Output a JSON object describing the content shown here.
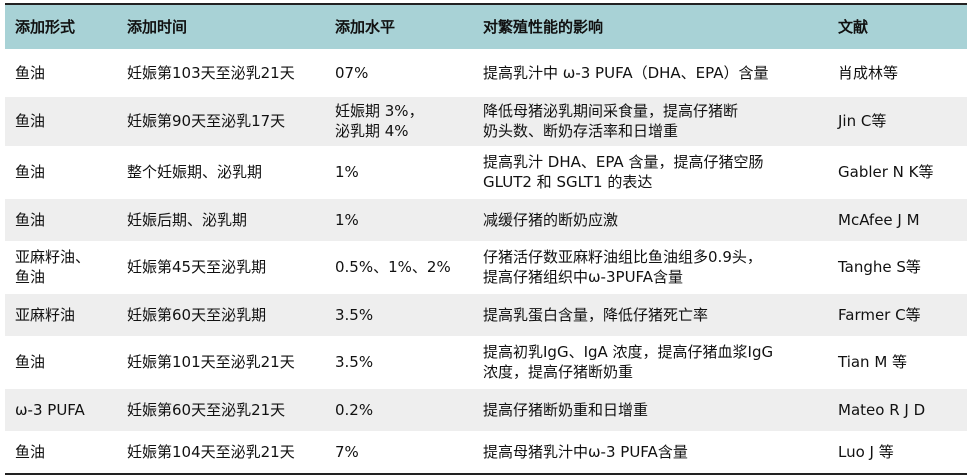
{
  "table": {
    "headers": [
      "添加形式",
      "添加时间",
      "添加水平",
      "对繁殖性能的影响",
      "文献"
    ],
    "rows": [
      [
        "鱼油",
        "妊娠第103天至泌乳21天",
        "07%",
        "提高乳汁中 ω-3 PUFA（DHA、EPA）含量",
        "肖成林等"
      ],
      [
        "鱼油",
        "妊娠第90天至泌乳17天",
        "妊娠期 3%，\n泌乳期 4%",
        "降低母猪泌乳期间采食量，提高仔猪断\n奶头数、断奶存活率和日增重",
        "Jin C等"
      ],
      [
        "鱼油",
        "整个妊娠期、泌乳期",
        "1%",
        "提高乳汁 DHA、EPA 含量，提高仔猪空肠\nGLUT2 和 SGLT1 的表达",
        "Gabler N K等"
      ],
      [
        "鱼油",
        "妊娠后期、泌乳期",
        "1%",
        "减缓仔猪的断奶应激",
        "McAfee J M"
      ],
      [
        "亚麻籽油、\n鱼油",
        "妊娠第45天至泌乳期",
        "0.5%、1%、2%",
        "仔猪活仔数亚麻籽油组比鱼油组多0.9头，\n提高仔猪组织中ω-3PUFA含量",
        "Tanghe S等"
      ],
      [
        "亚麻籽油",
        "妊娠第60天至泌乳期",
        "3.5%",
        "提高乳蛋白含量，降低仔猪死亡率",
        "Farmer C等"
      ],
      [
        "鱼油",
        "妊娠第101天至泌乳21天",
        "3.5%",
        "提高初乳IgG、IgA 浓度，提高仔猪血浆IgG\n浓度，提高仔猪断奶重",
        "Tian M 等"
      ],
      [
        "ω-3 PUFA",
        "妊娠第60天至泌乳21天",
        "0.2%",
        "提高仔猪断奶重和日增重",
        "Mateo R J D"
      ],
      [
        "鱼油",
        "妊娠第104天至泌乳21天",
        "7%",
        "提高母猪乳汁中ω-3 PUFA含量",
        "Luo J 等"
      ]
    ]
  }
}
